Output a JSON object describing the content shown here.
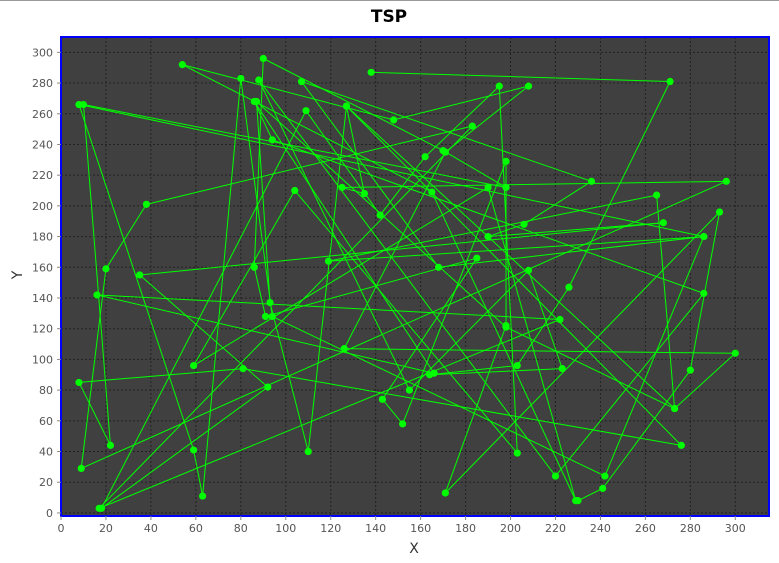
{
  "chart_data": {
    "type": "line",
    "title": "TSP",
    "xlabel": "X",
    "ylabel": "Y",
    "xlim": [
      0,
      315
    ],
    "ylim": [
      -2,
      310
    ],
    "x_ticks": [
      0,
      20,
      40,
      60,
      80,
      100,
      120,
      140,
      160,
      180,
      200,
      220,
      240,
      260,
      280,
      300
    ],
    "y_ticks": [
      0,
      20,
      40,
      60,
      80,
      100,
      120,
      140,
      160,
      180,
      200,
      220,
      240,
      260,
      280,
      300
    ],
    "grid": true,
    "legend": "none",
    "colors": {
      "background": "#404040",
      "series": "#00ff00",
      "border": "#0000ff",
      "grid": "#222222"
    },
    "series": [
      {
        "points": [
          [
            138,
            287
          ],
          [
            271,
            281
          ],
          [
            226,
            147
          ],
          [
            203,
            96
          ],
          [
            164,
            90
          ],
          [
            223,
            94
          ],
          [
            208,
            158
          ],
          [
            155,
            80
          ],
          [
            88,
            282
          ],
          [
            220,
            24
          ],
          [
            286,
            143
          ],
          [
            94,
            243
          ],
          [
            86,
            268
          ],
          [
            166,
            91
          ],
          [
            16,
            142
          ],
          [
            222,
            126
          ],
          [
            17,
            3
          ],
          [
            183,
            252
          ],
          [
            38,
            201
          ],
          [
            20,
            159
          ],
          [
            9,
            29
          ],
          [
            296,
            216
          ],
          [
            125,
            212
          ],
          [
            135,
            208
          ],
          [
            127,
            265
          ],
          [
            273,
            68
          ],
          [
            265,
            207
          ],
          [
            119,
            164
          ],
          [
            286,
            180
          ],
          [
            242,
            24
          ],
          [
            94,
            128
          ],
          [
            80,
            283
          ],
          [
            63,
            11
          ],
          [
            59,
            41
          ],
          [
            8,
            266
          ],
          [
            286,
            180
          ],
          [
            168,
            160
          ],
          [
            107,
            281
          ],
          [
            236,
            216
          ],
          [
            206,
            188
          ],
          [
            190,
            180
          ],
          [
            268,
            189
          ],
          [
            35,
            155
          ],
          [
            92,
            82
          ],
          [
            18,
            3
          ],
          [
            109,
            262
          ],
          [
            142,
            194
          ],
          [
            162,
            232
          ],
          [
            195,
            278
          ],
          [
            203,
            39
          ],
          [
            104,
            210
          ],
          [
            59,
            96
          ],
          [
            190,
            212
          ],
          [
            229,
            8
          ],
          [
            165,
            209
          ],
          [
            54,
            292
          ],
          [
            148,
            256
          ],
          [
            208,
            278
          ],
          [
            171,
            235
          ],
          [
            126,
            107
          ],
          [
            300,
            104
          ],
          [
            273,
            68
          ],
          [
            198,
            121
          ],
          [
            87,
            268
          ],
          [
            93,
            137
          ],
          [
            110,
            40
          ],
          [
            127,
            265
          ],
          [
            276,
            44
          ],
          [
            81,
            94
          ],
          [
            8,
            85
          ],
          [
            22,
            44
          ],
          [
            10,
            266
          ],
          [
            198,
            212
          ],
          [
            170,
            236
          ],
          [
            90,
            296
          ],
          [
            86,
            160
          ],
          [
            91,
            128
          ],
          [
            185,
            166
          ],
          [
            143,
            74
          ],
          [
            152,
            58
          ],
          [
            198,
            229
          ],
          [
            198,
            122
          ],
          [
            171,
            13
          ],
          [
            293,
            196
          ],
          [
            280,
            93
          ],
          [
            241,
            16
          ],
          [
            230,
            8
          ]
        ]
      }
    ]
  }
}
